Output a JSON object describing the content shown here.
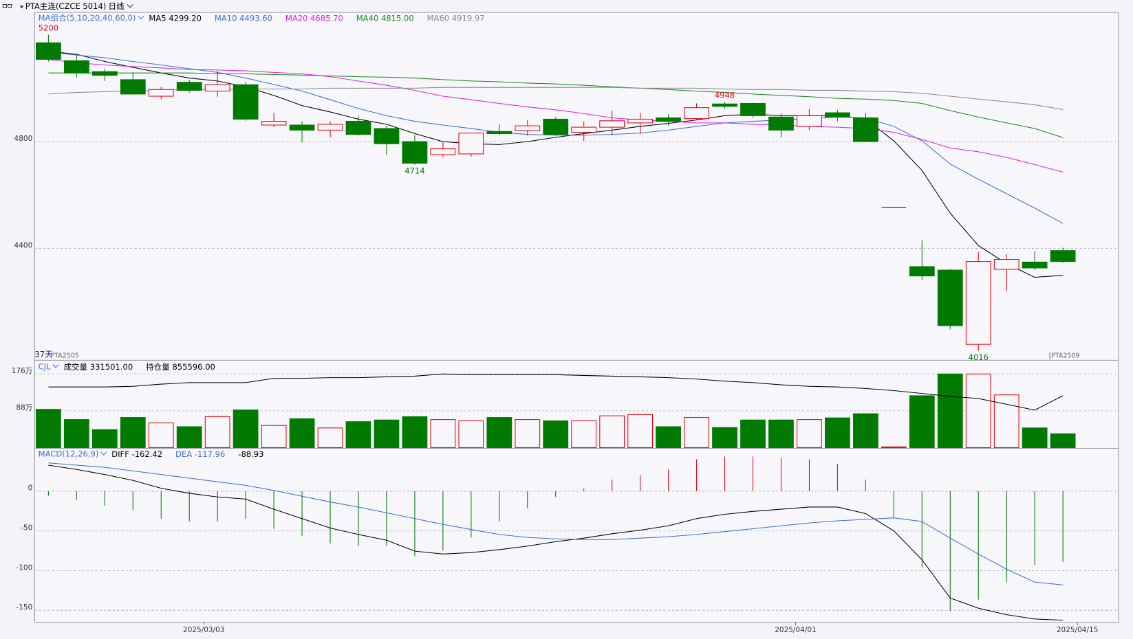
{
  "chart_data": [
    {
      "type": "candlestick",
      "title": "PTA主连(CZCE 5014)",
      "period": "日线",
      "indicator": "MA组合(5,10,20,40,60,0)",
      "bar_count_label": "37天",
      "contract_labels": [
        "PTA2505",
        "PTA2509"
      ],
      "up_color": "#e8000b",
      "down_color": "#007a00",
      "flat_color": "#000000",
      "grid": true,
      "open": [
        5170,
        5103,
        5062,
        5032,
        4970,
        5022,
        4989,
        5013,
        4862,
        4862,
        4843,
        4876,
        4849,
        4800,
        4751,
        4754,
        4838,
        4841,
        4884,
        4835,
        4854,
        4870,
        4889,
        4886,
        4941,
        4943,
        4892,
        4857,
        4908,
        4889,
        4554,
        4332,
        4319,
        4041,
        4322,
        4349,
        4392
      ],
      "high": [
        5200,
        5124,
        5073,
        5059,
        5005,
        5032,
        5065,
        5024,
        4908,
        4876,
        4876,
        4897,
        4859,
        4824,
        4800,
        4832,
        4865,
        4881,
        4892,
        4876,
        4916,
        4908,
        4903,
        4943,
        4948,
        4946,
        4905,
        4922,
        4919,
        4908,
        4554,
        4430,
        4324,
        4386,
        4378,
        4389,
        4403
      ],
      "low": [
        5100,
        5040,
        5027,
        4976,
        4959,
        4984,
        4968,
        4878,
        4854,
        4797,
        4816,
        4822,
        4749,
        4714,
        4741,
        4743,
        4824,
        4822,
        4822,
        4803,
        4824,
        4827,
        4859,
        4881,
        4924,
        4889,
        4816,
        4843,
        4876,
        4800,
        4554,
        4281,
        4097,
        4016,
        4240,
        4319,
        4346
      ],
      "close": [
        5108,
        5057,
        5048,
        4978,
        4995,
        4992,
        5013,
        4884,
        4876,
        4843,
        4865,
        4827,
        4792,
        4719,
        4773,
        4832,
        4830,
        4859,
        4827,
        4854,
        4878,
        4884,
        4876,
        4927,
        4932,
        4897,
        4843,
        4897,
        4892,
        4800,
        4554,
        4297,
        4111,
        4351,
        4359,
        4327,
        4351
      ],
      "series": [
        {
          "name": "MA5",
          "legend_value": "4299.20",
          "color": "#000000",
          "values": [
            5138,
            5127,
            5100,
            5078,
            5057,
            5038,
            5027,
            5005,
            4973,
            4935,
            4911,
            4884,
            4865,
            4830,
            4800,
            4792,
            4789,
            4800,
            4816,
            4830,
            4843,
            4857,
            4868,
            4881,
            4897,
            4903,
            4897,
            4897,
            4897,
            4884,
            4803,
            4692,
            4532,
            4411,
            4343,
            4292,
            4299.2
          ]
        },
        {
          "name": "MA10",
          "legend_value": "4493.60",
          "color": "#3a6fd8",
          "values": [
            5135,
            5124,
            5114,
            5100,
            5087,
            5073,
            5059,
            5038,
            5014,
            4989,
            4957,
            4924,
            4897,
            4876,
            4862,
            4849,
            4835,
            4827,
            4824,
            4824,
            4827,
            4832,
            4843,
            4857,
            4870,
            4876,
            4881,
            4886,
            4892,
            4889,
            4857,
            4803,
            4716,
            4659,
            4605,
            4551,
            4493.6
          ]
        },
        {
          "name": "MA20",
          "legend_value": "4685.70",
          "color": "#e020e0",
          "values": [
            5108,
            5095,
            5087,
            5081,
            5076,
            5070,
            5068,
            5065,
            5059,
            5054,
            5043,
            5027,
            5011,
            4992,
            4970,
            4957,
            4943,
            4930,
            4919,
            4905,
            4889,
            4881,
            4876,
            4870,
            4870,
            4865,
            4862,
            4857,
            4854,
            4849,
            4835,
            4808,
            4776,
            4762,
            4741,
            4714,
            4685.7
          ]
        },
        {
          "name": "MA40",
          "legend_value": "4815.00",
          "color": "#1a8a1a",
          "values": [
            5057,
            5057,
            5057,
            5057,
            5057,
            5057,
            5054,
            5054,
            5051,
            5049,
            5046,
            5043,
            5041,
            5038,
            5032,
            5027,
            5024,
            5019,
            5016,
            5011,
            5005,
            5000,
            4995,
            4989,
            4984,
            4978,
            4973,
            4968,
            4962,
            4959,
            4954,
            4943,
            4916,
            4892,
            4870,
            4849,
            4815
          ]
        },
        {
          "name": "MA60",
          "legend_value": "4919.97",
          "color": "#888888",
          "values": [
            4978,
            4984,
            4987,
            4989,
            4992,
            4995,
            4995,
            4997,
            4997,
            4997,
            5000,
            5000,
            5000,
            5000,
            5003,
            5003,
            5003,
            5003,
            5003,
            5003,
            5003,
            5000,
            5000,
            5000,
            4997,
            4995,
            4995,
            4992,
            4992,
            4989,
            4987,
            4981,
            4970,
            4959,
            4949,
            4938,
            4919.97
          ]
        }
      ],
      "ylim": [
        3984,
        5281
      ],
      "yticks": [
        4400,
        4800
      ]
    },
    {
      "type": "bar",
      "title": "CJL",
      "grid": true,
      "series": [
        {
          "name": "成交量",
          "legend_value": "331501.00",
          "values": [
            91.5,
            67,
            43,
            72,
            59,
            50,
            74,
            90,
            53,
            69,
            47,
            62,
            66,
            74,
            67,
            64,
            72,
            67,
            64,
            64,
            76,
            79,
            50,
            72,
            48,
            66,
            66,
            67,
            71,
            81,
            1.7,
            124,
            176,
            176,
            126,
            47,
            33.15
          ]
        },
        {
          "name": "持仓量",
          "legend_value": "855596.00",
          "color": "#000000",
          "axis": "y2",
          "values": [
            93.2,
            93.2,
            93.2,
            93.8,
            95.7,
            97.0,
            97.0,
            97.0,
            100.8,
            100.8,
            101.4,
            101.4,
            102.1,
            102.7,
            104.6,
            104.0,
            104.0,
            104.0,
            104.0,
            103.3,
            102.7,
            102.1,
            101.4,
            100.2,
            98.3,
            97.0,
            95.1,
            93.8,
            93.2,
            91.9,
            90.0,
            87.5,
            85.0,
            83.1,
            78.0,
            72.9,
            85.56
          ]
        }
      ],
      "ylim": [
        0,
        207
      ],
      "yticks": [
        {
          "value": 88,
          "label": "88万"
        },
        {
          "value": 176,
          "label": "176万"
        }
      ],
      "y2lim": [
        40,
        116
      ]
    },
    {
      "type": "macd",
      "title": "MACD(12,26,9)",
      "grid": true,
      "categories": [
        null,
        null,
        null,
        null,
        null,
        "2025/03/03",
        null,
        null,
        null,
        null,
        null,
        null,
        null,
        null,
        null,
        null,
        null,
        null,
        null,
        null,
        null,
        null,
        null,
        null,
        null,
        null,
        "2025/04/01",
        null,
        null,
        null,
        null,
        null,
        null,
        null,
        null,
        null,
        "2025/04/15"
      ],
      "series": [
        {
          "name": "DIFF",
          "legend_value": "-162.42",
          "color": "#000000",
          "values": [
            32.7,
            27.3,
            20.9,
            13.6,
            3.6,
            -2.7,
            -7.3,
            -10,
            -22.7,
            -34.5,
            -46.4,
            -54.5,
            -61.8,
            -75.5,
            -79.1,
            -77.3,
            -73.6,
            -69.1,
            -63.6,
            -59.1,
            -53.6,
            -49.1,
            -43.6,
            -34.5,
            -29.1,
            -25.5,
            -22.7,
            -20,
            -20,
            -28.2,
            -50,
            -86.4,
            -134.5,
            -147.3,
            -155.5,
            -160.9,
            -162.42
          ]
        },
        {
          "name": "DEA",
          "legend_value": "-117.96",
          "color": "#3a6fd8",
          "values": [
            35.5,
            32.7,
            30,
            25.5,
            20.9,
            16.4,
            11.8,
            7.3,
            0.9,
            -6.4,
            -13.6,
            -20,
            -27.3,
            -34.5,
            -41.8,
            -48.2,
            -54.5,
            -58.2,
            -60,
            -60.9,
            -60.9,
            -59.1,
            -57.3,
            -54.5,
            -50.9,
            -47.3,
            -43.6,
            -40,
            -37.3,
            -35.5,
            -33.6,
            -38.2,
            -59.1,
            -79.1,
            -98.2,
            -114.5,
            -117.96
          ]
        },
        {
          "legend_value": "-88.93",
          "up_color": "#e8000b",
          "down_color": "#007a00",
          "values": [
            -5.6,
            -10.8,
            -18.2,
            -23.8,
            -34.6,
            -38.2,
            -38.2,
            -34.6,
            -47.2,
            -56.2,
            -65.6,
            -69,
            -69,
            -82,
            -74.6,
            -58.2,
            -38.2,
            -21.8,
            -7.2,
            3.6,
            14.6,
            20,
            27.4,
            40,
            43.6,
            43.6,
            41.8,
            40,
            34.6,
            14.6,
            -32.8,
            -96.4,
            -150.8,
            -136.4,
            -114.6,
            -92.8,
            -88.93
          ]
        }
      ],
      "ylim": [
        -165,
        53
      ],
      "yticks": [
        0,
        -50,
        -100,
        -150
      ]
    }
  ]
}
